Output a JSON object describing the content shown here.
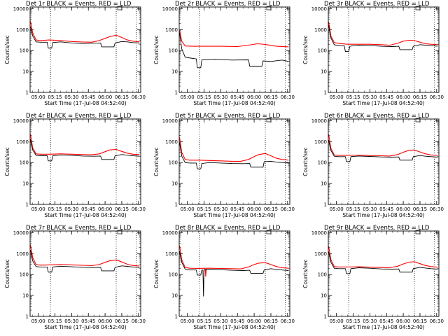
{
  "figure": {
    "panels": [
      "Det 1r",
      "Det 2r",
      "Det 3r",
      "Det 4r",
      "Det 5r",
      "Det 6r",
      "Det 7r",
      "Det 8r",
      "Det 9r"
    ],
    "title_suffix": "BLACK = Events, RED = LLD",
    "ylabel": "Counts/sec",
    "xlabel": "Start Time (17-Jul-08 04:52:40)",
    "ytick_labels": [
      "1",
      "10",
      "100",
      "1000",
      "10000"
    ],
    "xtick_labels": [
      "05:00",
      "05:15",
      "05:30",
      "05:45",
      "06:00",
      "06:15",
      "06:30"
    ]
  },
  "chart_data": [
    {
      "type": "line",
      "title": "Det 1r BLACK = Events, RED = LLD",
      "xlabel": "Start Time (17-Jul-08 04:52:40)",
      "ylabel": "Counts/sec",
      "yscale": "log",
      "ylim": [
        1,
        12000
      ],
      "xlim": [
        "04:52:40",
        "06:32:00"
      ],
      "vlines": [
        "05:11",
        "06:10",
        "06:28"
      ],
      "series": [
        {
          "name": "LLD",
          "color": "#ff0000",
          "x": [
            "04:53",
            "04:55",
            "04:58",
            "05:02",
            "05:10",
            "05:20",
            "05:30",
            "05:40",
            "05:48",
            "05:55",
            "06:00",
            "06:04",
            "06:10",
            "06:15",
            "06:20",
            "06:25",
            "06:31"
          ],
          "y": [
            2500,
            700,
            320,
            300,
            320,
            300,
            270,
            255,
            250,
            300,
            380,
            460,
            540,
            420,
            320,
            280,
            260
          ]
        },
        {
          "name": "Events",
          "color": "#000000",
          "x": [
            "04:53",
            "04:55",
            "04:58",
            "05:02",
            "05:08",
            "05:09",
            "05:12",
            "05:13",
            "05:20",
            "05:30",
            "05:40",
            "05:50",
            "05:56",
            "05:57",
            "06:08",
            "06:09",
            "06:15",
            "06:20",
            "06:25",
            "06:31"
          ],
          "y": [
            1400,
            500,
            260,
            250,
            250,
            130,
            130,
            240,
            260,
            230,
            215,
            225,
            230,
            150,
            150,
            230,
            270,
            260,
            240,
            230
          ]
        }
      ]
    },
    {
      "type": "line",
      "title": "Det 2r BLACK = Events, RED = LLD",
      "xlabel": "Start Time (17-Jul-08 04:52:40)",
      "ylabel": "Counts/sec",
      "yscale": "log",
      "ylim": [
        1,
        12000
      ],
      "xlim": [
        "04:52:40",
        "06:32:00"
      ],
      "vlines": [
        "05:11",
        "06:10",
        "06:28"
      ],
      "series": [
        {
          "name": "LLD",
          "color": "#ff0000",
          "x": [
            "04:53",
            "04:55",
            "04:58",
            "05:05",
            "05:15",
            "05:30",
            "05:45",
            "05:55",
            "06:03",
            "06:10",
            "06:20",
            "06:31"
          ],
          "y": [
            900,
            280,
            165,
            160,
            160,
            160,
            155,
            180,
            210,
            195,
            160,
            150
          ]
        },
        {
          "name": "Events",
          "color": "#000000",
          "x": [
            "04:53",
            "04:55",
            "04:58",
            "05:05",
            "05:08",
            "05:09",
            "05:12",
            "05:13",
            "05:25",
            "05:40",
            "05:55",
            "05:56",
            "06:07",
            "06:08",
            "06:15",
            "06:25",
            "06:31"
          ],
          "y": [
            700,
            120,
            48,
            42,
            40,
            15,
            15,
            36,
            38,
            35,
            36,
            18,
            18,
            32,
            30,
            35,
            30
          ]
        }
      ]
    },
    {
      "type": "line",
      "title": "Det 3r BLACK = Events, RED = LLD",
      "xlabel": "Start Time (17-Jul-08 04:52:40)",
      "ylabel": "Counts/sec",
      "yscale": "log",
      "ylim": [
        1,
        12000
      ],
      "xlim": [
        "04:52:40",
        "06:32:00"
      ],
      "vlines": [
        "05:11",
        "06:10",
        "06:28"
      ],
      "series": [
        {
          "name": "LLD",
          "color": "#ff0000",
          "x": [
            "04:53",
            "04:55",
            "04:58",
            "05:02",
            "05:10",
            "05:20",
            "05:30",
            "05:40",
            "05:48",
            "05:55",
            "06:00",
            "06:05",
            "06:10",
            "06:15",
            "06:20",
            "06:25",
            "06:31"
          ],
          "y": [
            2400,
            500,
            240,
            220,
            200,
            200,
            200,
            190,
            180,
            220,
            280,
            310,
            300,
            250,
            210,
            200,
            190
          ]
        },
        {
          "name": "Events",
          "color": "#000000",
          "x": [
            "04:53",
            "04:55",
            "04:58",
            "05:02",
            "05:07",
            "05:08",
            "05:11",
            "05:12",
            "05:20",
            "05:30",
            "05:40",
            "05:50",
            "05:56",
            "05:57",
            "06:08",
            "06:09",
            "06:15",
            "06:20",
            "06:25",
            "06:31"
          ],
          "y": [
            1600,
            400,
            190,
            170,
            170,
            90,
            90,
            160,
            180,
            175,
            160,
            155,
            160,
            110,
            110,
            160,
            190,
            180,
            170,
            160
          ]
        }
      ]
    },
    {
      "type": "line",
      "title": "Det 4r BLACK = Events, RED = LLD",
      "xlabel": "Start Time (17-Jul-08 04:52:40)",
      "ylabel": "Counts/sec",
      "yscale": "log",
      "ylim": [
        1,
        12000
      ],
      "xlim": [
        "04:52:40",
        "06:32:00"
      ],
      "vlines": [
        "05:11",
        "06:10",
        "06:28"
      ],
      "series": [
        {
          "name": "LLD",
          "color": "#ff0000",
          "x": [
            "04:53",
            "04:55",
            "04:58",
            "05:02",
            "05:10",
            "05:20",
            "05:30",
            "05:40",
            "05:48",
            "05:55",
            "06:00",
            "06:04",
            "06:10",
            "06:15",
            "06:20",
            "06:25",
            "06:31"
          ],
          "y": [
            2300,
            500,
            260,
            250,
            250,
            260,
            250,
            240,
            235,
            260,
            330,
            400,
            420,
            340,
            280,
            250,
            240
          ]
        },
        {
          "name": "Events",
          "color": "#000000",
          "x": [
            "04:53",
            "04:55",
            "04:58",
            "05:02",
            "05:08",
            "05:09",
            "05:12",
            "05:13",
            "05:20",
            "05:30",
            "05:40",
            "05:50",
            "05:56",
            "05:57",
            "06:08",
            "06:09",
            "06:15",
            "06:20",
            "06:25",
            "06:31"
          ],
          "y": [
            1300,
            400,
            220,
            210,
            210,
            120,
            120,
            210,
            230,
            220,
            205,
            200,
            205,
            140,
            140,
            210,
            240,
            225,
            210,
            200
          ]
        }
      ]
    },
    {
      "type": "line",
      "title": "Det 5r BLACK = Events, RED = LLD",
      "xlabel": "Start Time (17-Jul-08 04:52:40)",
      "ylabel": "Counts/sec",
      "yscale": "log",
      "ylim": [
        1,
        12000
      ],
      "xlim": [
        "04:52:40",
        "06:32:00"
      ],
      "vlines": [
        "05:11",
        "06:10",
        "06:28"
      ],
      "series": [
        {
          "name": "LLD",
          "color": "#ff0000",
          "x": [
            "04:53",
            "04:55",
            "04:58",
            "05:02",
            "05:10",
            "05:20",
            "05:30",
            "05:40",
            "05:48",
            "05:55",
            "06:00",
            "06:04",
            "06:10",
            "06:15",
            "06:20",
            "06:25",
            "06:31"
          ],
          "y": [
            1600,
            300,
            140,
            130,
            130,
            125,
            120,
            115,
            115,
            140,
            190,
            240,
            270,
            210,
            160,
            140,
            130
          ]
        },
        {
          "name": "Events",
          "color": "#000000",
          "x": [
            "04:53",
            "04:55",
            "04:58",
            "05:02",
            "05:08",
            "05:09",
            "05:12",
            "05:13",
            "05:20",
            "05:30",
            "05:40",
            "05:50",
            "05:56",
            "05:57",
            "06:08",
            "06:09",
            "06:15",
            "06:20",
            "06:25",
            "06:31"
          ],
          "y": [
            900,
            200,
            100,
            95,
            95,
            50,
            50,
            90,
            100,
            95,
            90,
            88,
            90,
            60,
            60,
            110,
            115,
            105,
            100,
            95
          ]
        }
      ]
    },
    {
      "type": "line",
      "title": "Det 6r BLACK = Events, RED = LLD",
      "xlabel": "Start Time (17-Jul-08 04:52:40)",
      "ylabel": "Counts/sec",
      "yscale": "log",
      "ylim": [
        1,
        12000
      ],
      "xlim": [
        "04:52:40",
        "06:32:00"
      ],
      "vlines": [
        "05:11",
        "06:10",
        "06:28"
      ],
      "series": [
        {
          "name": "LLD",
          "color": "#ff0000",
          "x": [
            "04:53",
            "04:55",
            "04:58",
            "05:02",
            "05:10",
            "05:20",
            "05:30",
            "05:40",
            "05:48",
            "05:55",
            "06:00",
            "06:05",
            "06:10",
            "06:15",
            "06:20",
            "06:25",
            "06:31"
          ],
          "y": [
            2200,
            480,
            230,
            220,
            220,
            225,
            215,
            210,
            205,
            240,
            310,
            380,
            400,
            320,
            260,
            230,
            220
          ]
        },
        {
          "name": "Events",
          "color": "#000000",
          "x": [
            "04:53",
            "04:55",
            "04:58",
            "05:02",
            "05:08",
            "05:09",
            "05:12",
            "05:13",
            "05:20",
            "05:30",
            "05:40",
            "05:50",
            "05:56",
            "05:57",
            "06:08",
            "06:09",
            "06:15",
            "06:20",
            "06:25",
            "06:31"
          ],
          "y": [
            1200,
            380,
            200,
            190,
            190,
            110,
            110,
            190,
            205,
            195,
            185,
            180,
            185,
            130,
            130,
            190,
            215,
            200,
            190,
            180
          ]
        }
      ]
    },
    {
      "type": "line",
      "title": "Det 7r BLACK = Events, RED = LLD",
      "xlabel": "Start Time (17-Jul-08 04:52:40)",
      "ylabel": "Counts/sec",
      "yscale": "log",
      "ylim": [
        1,
        12000
      ],
      "xlim": [
        "04:52:40",
        "06:32:00"
      ],
      "vlines": [
        "05:11",
        "06:10",
        "06:28"
      ],
      "series": [
        {
          "name": "LLD",
          "color": "#ff0000",
          "x": [
            "04:53",
            "04:55",
            "04:58",
            "05:02",
            "05:10",
            "05:20",
            "05:30",
            "05:40",
            "05:48",
            "05:55",
            "06:00",
            "06:04",
            "06:10",
            "06:15",
            "06:20",
            "06:25",
            "06:31"
          ],
          "y": [
            2600,
            650,
            300,
            280,
            290,
            300,
            290,
            275,
            265,
            300,
            380,
            450,
            500,
            400,
            310,
            270,
            255
          ]
        },
        {
          "name": "Events",
          "color": "#000000",
          "x": [
            "04:53",
            "04:55",
            "04:58",
            "05:02",
            "05:08",
            "05:09",
            "05:12",
            "05:13",
            "05:20",
            "05:30",
            "05:40",
            "05:50",
            "05:56",
            "05:57",
            "06:08",
            "06:09",
            "06:15",
            "06:20",
            "06:25",
            "06:31"
          ],
          "y": [
            1500,
            450,
            240,
            230,
            230,
            130,
            130,
            230,
            250,
            235,
            220,
            215,
            220,
            150,
            150,
            220,
            260,
            245,
            230,
            215
          ]
        }
      ]
    },
    {
      "type": "line",
      "title": "Det 8r BLACK = Events, RED = LLD",
      "xlabel": "Start Time (17-Jul-08 04:52:40)",
      "ylabel": "Counts/sec",
      "yscale": "log",
      "ylim": [
        1,
        12000
      ],
      "xlim": [
        "04:52:40",
        "06:32:00"
      ],
      "vlines": [
        "05:11",
        "06:10",
        "06:28"
      ],
      "series": [
        {
          "name": "LLD",
          "color": "#ff0000",
          "x": [
            "04:53",
            "04:55",
            "04:58",
            "05:02",
            "05:10",
            "05:16",
            "05:16.5",
            "05:17",
            "05:20",
            "05:30",
            "05:40",
            "05:48",
            "05:55",
            "06:00",
            "06:04",
            "06:10",
            "06:15",
            "06:20",
            "06:25",
            "06:31"
          ],
          "y": [
            2400,
            500,
            220,
            200,
            195,
            200,
            80,
            200,
            200,
            195,
            190,
            185,
            230,
            300,
            350,
            370,
            300,
            240,
            210,
            200
          ]
        },
        {
          "name": "Events",
          "color": "#000000",
          "x": [
            "04:53",
            "04:55",
            "04:58",
            "05:02",
            "05:08",
            "05:09",
            "05:12",
            "05:13",
            "05:14",
            "05:14.5",
            "05:15",
            "05:20",
            "05:30",
            "05:40",
            "05:50",
            "05:56",
            "05:57",
            "06:08",
            "06:09",
            "06:15",
            "06:20",
            "06:25",
            "06:31"
          ],
          "y": [
            1300,
            380,
            180,
            165,
            165,
            95,
            95,
            165,
            165,
            9,
            165,
            180,
            170,
            160,
            155,
            160,
            115,
            115,
            165,
            190,
            175,
            165,
            155
          ]
        }
      ]
    },
    {
      "type": "line",
      "title": "Det 9r BLACK = Events, RED = LLD",
      "xlabel": "Start Time (17-Jul-08 04:52:40)",
      "ylabel": "Counts/sec",
      "yscale": "log",
      "ylim": [
        1,
        12000
      ],
      "xlim": [
        "04:52:40",
        "06:32:00"
      ],
      "vlines": [
        "05:11",
        "06:10",
        "06:28"
      ],
      "series": [
        {
          "name": "LLD",
          "color": "#ff0000",
          "x": [
            "04:53",
            "04:55",
            "04:58",
            "05:02",
            "05:10",
            "05:20",
            "05:30",
            "05:40",
            "05:48",
            "05:55",
            "06:00",
            "06:05",
            "06:10",
            "06:15",
            "06:20",
            "06:25",
            "06:31"
          ],
          "y": [
            2300,
            520,
            240,
            230,
            230,
            235,
            225,
            215,
            210,
            250,
            320,
            390,
            410,
            330,
            270,
            240,
            225
          ]
        },
        {
          "name": "Events",
          "color": "#000000",
          "x": [
            "04:53",
            "04:55",
            "04:58",
            "05:02",
            "05:08",
            "05:09",
            "05:12",
            "05:13",
            "05:20",
            "05:30",
            "05:40",
            "05:50",
            "05:56",
            "05:57",
            "06:08",
            "06:09",
            "06:15",
            "06:20",
            "06:25",
            "06:31"
          ],
          "y": [
            1250,
            390,
            200,
            190,
            190,
            110,
            110,
            190,
            210,
            200,
            185,
            180,
            185,
            130,
            130,
            190,
            220,
            205,
            190,
            180
          ]
        }
      ]
    }
  ]
}
